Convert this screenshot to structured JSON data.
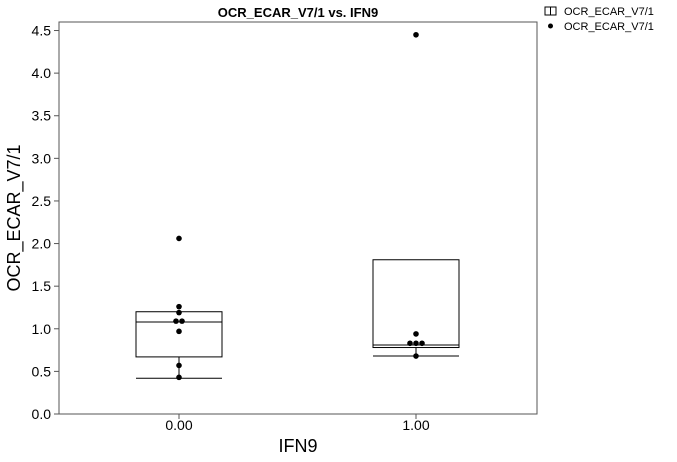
{
  "chart_data": {
    "type": "box",
    "title": "OCR_ECAR_V7/1 vs. IFN9",
    "xlabel": "IFN9",
    "ylabel": "OCR_ECAR_V7/1",
    "ylim": [
      0,
      4.6
    ],
    "yticks": [
      "0.0",
      "0.5",
      "1.0",
      "1.5",
      "2.0",
      "2.5",
      "3.0",
      "3.5",
      "4.0",
      "4.5"
    ],
    "ytick_values": [
      0,
      0.5,
      1.0,
      1.5,
      2.0,
      2.5,
      3.0,
      3.5,
      4.0,
      4.5
    ],
    "categories": [
      "0.00",
      "1.00"
    ],
    "grid": false,
    "legend": {
      "placement": "top-right-outside",
      "entries": [
        {
          "label": "OCR_ECAR_V7/1",
          "marker": "box"
        },
        {
          "label": "OCR_ECAR_V7/1",
          "marker": "dot"
        }
      ]
    },
    "boxes": [
      {
        "category": "0.00",
        "min": 0.42,
        "q1": 0.67,
        "median": 1.08,
        "q3": 1.2,
        "max": 1.2
      },
      {
        "category": "1.00",
        "min": 0.68,
        "q1": 0.78,
        "median": 0.81,
        "q3": 1.81,
        "max": 1.81
      }
    ],
    "points": [
      {
        "category": "0.00",
        "values": [
          2.06,
          1.26,
          1.19,
          1.09,
          1.09,
          0.97,
          0.57,
          0.43
        ]
      },
      {
        "category": "1.00",
        "values": [
          4.45,
          0.94,
          0.83,
          0.83,
          0.83,
          0.68
        ]
      }
    ],
    "colors": {
      "box": "#000000",
      "point": "#000000",
      "background": "#ffffff"
    }
  }
}
